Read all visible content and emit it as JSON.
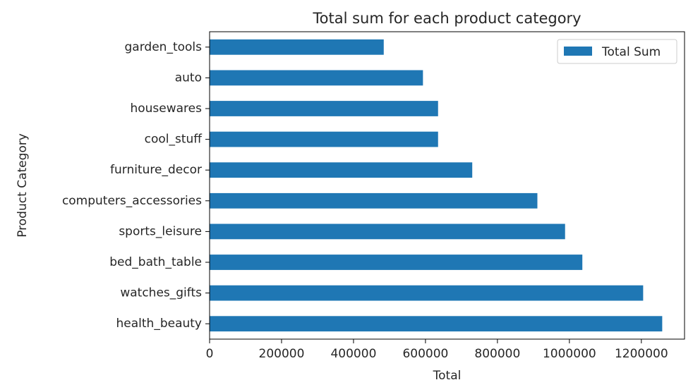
{
  "chart_data": {
    "type": "bar",
    "orientation": "horizontal",
    "title": "Total sum for each product category",
    "xlabel": "Total",
    "ylabel": "Product Category",
    "categories": [
      "health_beauty",
      "watches_gifts",
      "bed_bath_table",
      "sports_leisure",
      "computers_accessories",
      "furniture_decor",
      "cool_stuff",
      "housewares",
      "auto",
      "garden_tools"
    ],
    "series": [
      {
        "name": "Total Sum",
        "color": "#1f77b4",
        "values": [
          1258000,
          1205000,
          1036000,
          988000,
          911000,
          730000,
          635000,
          635000,
          593000,
          484000
        ]
      }
    ],
    "xlim": [
      0,
      1320000
    ],
    "x_ticks": [
      0,
      200000,
      400000,
      600000,
      800000,
      1000000,
      1200000
    ],
    "grid": false,
    "legend_position": "top-right"
  }
}
